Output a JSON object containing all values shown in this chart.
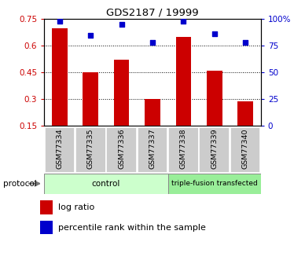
{
  "title": "GDS2187 / 19999",
  "samples": [
    "GSM77334",
    "GSM77335",
    "GSM77336",
    "GSM77337",
    "GSM77338",
    "GSM77339",
    "GSM77340"
  ],
  "log_ratio": [
    0.7,
    0.45,
    0.52,
    0.3,
    0.65,
    0.46,
    0.29
  ],
  "percentile_rank": [
    98,
    85,
    95,
    78,
    98,
    86,
    78
  ],
  "ylim_left": [
    0.15,
    0.75
  ],
  "ylim_right": [
    0,
    100
  ],
  "yticks_left": [
    0.15,
    0.3,
    0.45,
    0.6,
    0.75
  ],
  "yticks_right": [
    0,
    25,
    50,
    75,
    100
  ],
  "ytick_labels_left": [
    "0.15",
    "0.3",
    "0.45",
    "0.6",
    "0.75"
  ],
  "ytick_labels_right": [
    "0",
    "25",
    "50",
    "75",
    "100%"
  ],
  "bar_color": "#cc0000",
  "scatter_color": "#0000cc",
  "bar_bottom": 0.15,
  "grid_lines": [
    0.3,
    0.45,
    0.6
  ],
  "control_label": "control",
  "tfx_label": "triple-fusion transfected",
  "control_color": "#ccffcc",
  "tfx_color": "#99ee99",
  "protocol_label": "protocol",
  "legend_bar_label": "log ratio",
  "legend_scatter_label": "percentile rank within the sample",
  "sample_box_color": "#cccccc",
  "control_count": 4,
  "tfx_count": 3
}
